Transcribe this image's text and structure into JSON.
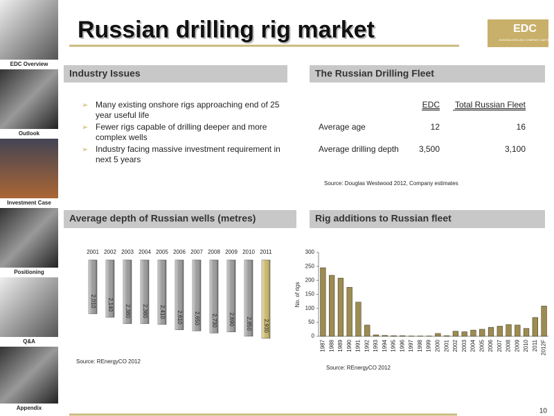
{
  "sidebar": [
    "EDC Overview",
    "Outlook",
    "Investment Case",
    "Positioning",
    "Q&A",
    "Appendix"
  ],
  "title": "Russian drilling rig market",
  "logo": {
    "name": "EDC",
    "subtitle": "EURASIA DRILLING COMPANY LIMITED"
  },
  "issues": {
    "heading": "Industry Issues",
    "bullets": [
      [
        "Many existing onshore rigs approaching end of 25",
        "year useful life"
      ],
      [
        "Fewer rigs capable of drilling deeper and more",
        "complex wells"
      ],
      [
        "Industry facing massive investment requirement in",
        "next 5 years"
      ]
    ]
  },
  "fleet": {
    "heading": "The Russian Drilling Fleet",
    "columns": [
      "EDC",
      "Total Russian Fleet"
    ],
    "rows": [
      {
        "label": "Average age",
        "values": [
          "12",
          "16"
        ]
      },
      {
        "label": "Average drilling depth",
        "values": [
          "3,500",
          "3,100"
        ]
      }
    ],
    "source": "Source: Douglas Westwood 2012, Company estimates"
  },
  "page_number": "10",
  "chart_data": [
    {
      "type": "bar",
      "title": "Average depth of Russian wells (metres)",
      "inverted": true,
      "categories": [
        "2001",
        "2002",
        "2003",
        "2004",
        "2005",
        "2006",
        "2007",
        "2008",
        "2009",
        "2010",
        "2011"
      ],
      "values": [
        2010,
        2140,
        2380,
        2380,
        2410,
        2610,
        2650,
        2730,
        2690,
        2850,
        2930
      ],
      "value_labels": [
        "2,010",
        "2,140",
        "2,380",
        "2,380",
        "2,410",
        "2,610",
        "2,650",
        "2,730",
        "2,690",
        "2,850",
        "2,930"
      ],
      "colors": [
        "#9a9a9a",
        "#9a9a9a",
        "#9a9a9a",
        "#9a9a9a",
        "#9a9a9a",
        "#9a9a9a",
        "#9a9a9a",
        "#9a9a9a",
        "#9a9a9a",
        "#9a9a9a",
        "#c9b86a"
      ],
      "source": "Source: REnergyCO 2012"
    },
    {
      "type": "bar",
      "title": "Rig additions to Russian fleet",
      "y_label": "No. of rigs",
      "categories": [
        "1987",
        "1988",
        "1989",
        "1990",
        "1991",
        "1992",
        "1993",
        "1994",
        "1995",
        "1996",
        "1997",
        "1998",
        "1999",
        "2000",
        "2001",
        "2002",
        "2003",
        "2004",
        "2005",
        "2006",
        "2007",
        "2008",
        "2009",
        "2010",
        "2011",
        "2012F"
      ],
      "values": [
        245,
        218,
        208,
        175,
        122,
        40,
        5,
        3,
        2,
        2,
        1,
        1,
        1,
        10,
        2,
        18,
        16,
        22,
        25,
        32,
        36,
        42,
        40,
        28,
        67,
        108
      ],
      "color": "#9c8c52",
      "ylim": [
        0,
        300
      ],
      "yticks": [
        0,
        50,
        100,
        150,
        200,
        250,
        300
      ],
      "source": "Source: REnergyCO 2012"
    }
  ]
}
